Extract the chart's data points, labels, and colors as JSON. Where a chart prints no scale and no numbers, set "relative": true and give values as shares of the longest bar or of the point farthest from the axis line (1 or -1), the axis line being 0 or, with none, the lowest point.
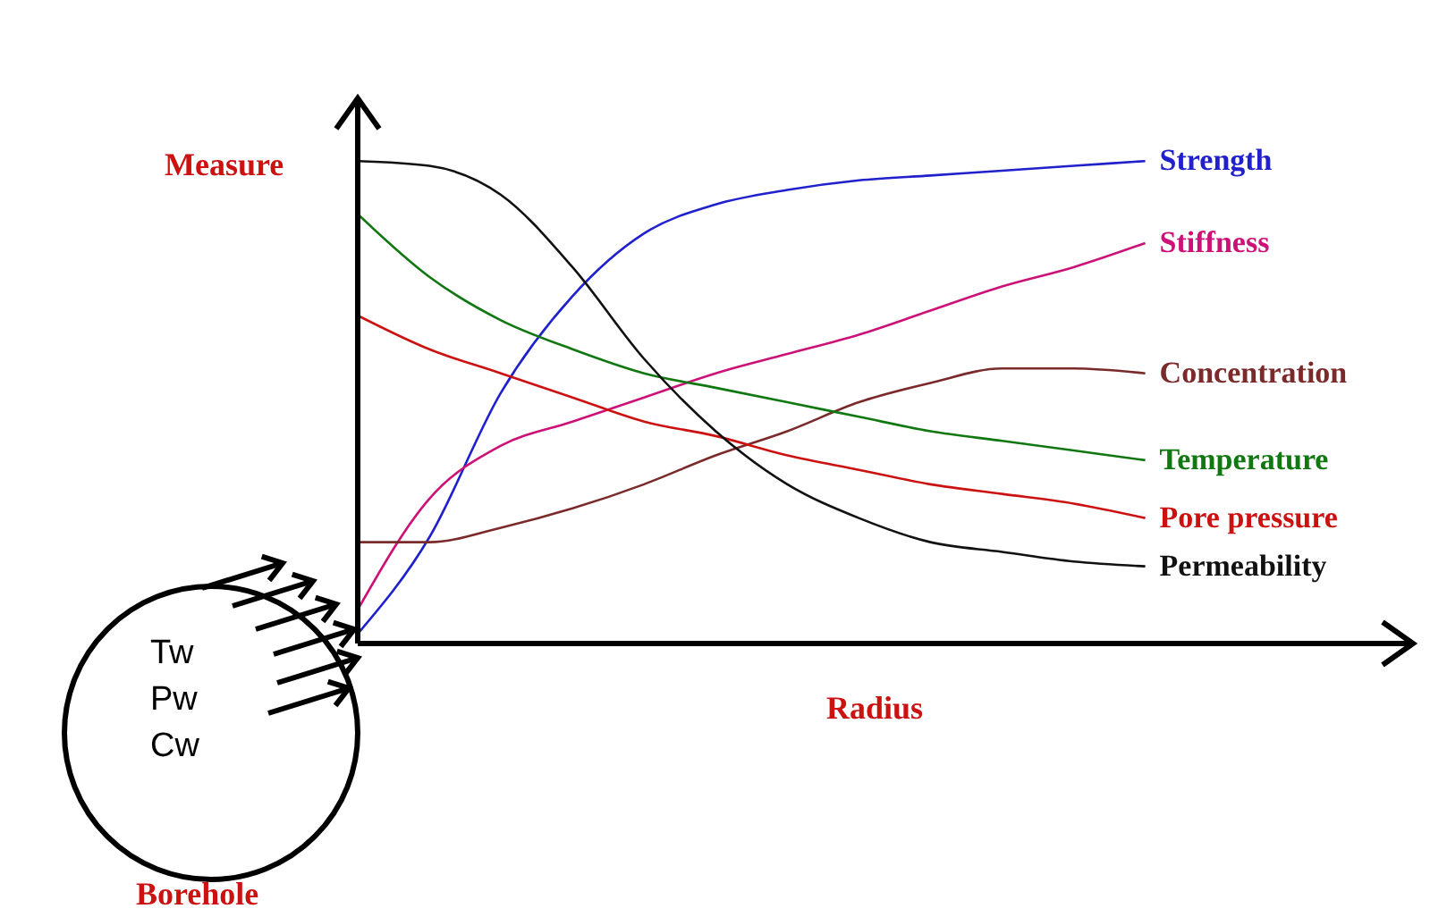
{
  "chart_data": {
    "type": "line",
    "relative": true,
    "xlabel": "Radius",
    "ylabel": "Measure",
    "marker": "none",
    "line_style": "solid",
    "categories": [
      null,
      null,
      null,
      null,
      null,
      null,
      null,
      null,
      null,
      null,
      null,
      null
    ],
    "series": [
      {
        "name": "Strength",
        "color": "#2020cc",
        "values": [
          0.02,
          0.22,
          0.52,
          0.72,
          0.85,
          0.91,
          0.94,
          0.96,
          0.97,
          0.98,
          0.99,
          1.0
        ]
      },
      {
        "name": "Stiffness",
        "color": "#cc1177",
        "values": [
          0.07,
          0.3,
          0.41,
          0.46,
          0.51,
          0.56,
          0.6,
          0.64,
          0.69,
          0.74,
          0.78,
          0.83
        ]
      },
      {
        "name": "Concentration",
        "color": "#7a2a2a",
        "values": [
          0.21,
          0.21,
          0.24,
          0.28,
          0.33,
          0.39,
          0.44,
          0.5,
          0.54,
          0.57,
          0.57,
          0.56
        ]
      },
      {
        "name": "Temperature",
        "color": "#117711",
        "values": [
          0.89,
          0.76,
          0.67,
          0.61,
          0.56,
          0.53,
          0.5,
          0.47,
          0.44,
          0.42,
          0.4,
          0.38
        ]
      },
      {
        "name": "Pore pressure",
        "color": "#cc1111",
        "values": [
          0.68,
          0.61,
          0.56,
          0.51,
          0.46,
          0.43,
          0.39,
          0.36,
          0.33,
          0.31,
          0.29,
          0.26
        ]
      },
      {
        "name": "Permeability",
        "color": "#111111",
        "values": [
          1.0,
          0.99,
          0.93,
          0.78,
          0.59,
          0.44,
          0.33,
          0.26,
          0.21,
          0.19,
          0.17,
          0.16
        ]
      }
    ],
    "annotations": [
      "Tw",
      "Pw",
      "Cw",
      "Borehole"
    ]
  }
}
